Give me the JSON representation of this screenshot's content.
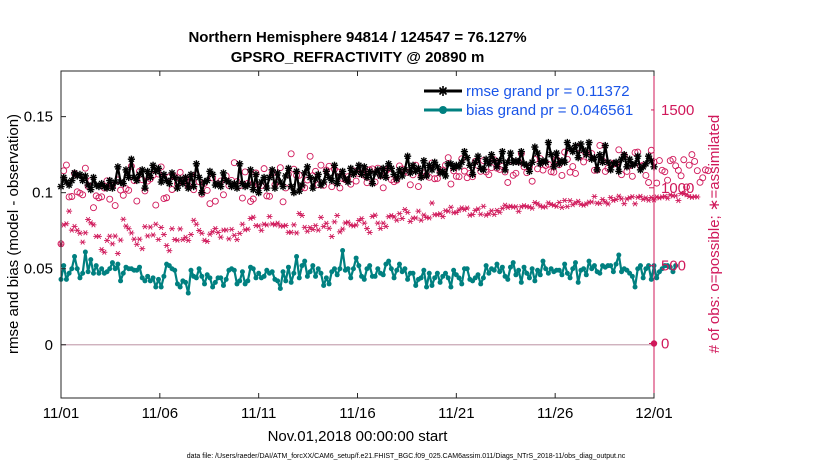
{
  "chart_data": {
    "type": "line",
    "title": "Northern Hemisphere 94814 / 124547 = 76.127%",
    "subtitle": "GPSRO_REFRACTIVITY @ 20890 m",
    "xlabel": "Nov.01,2018 00:00:00 start",
    "ylabel": "rmse and bias (model - observation)",
    "ylabel_right": "# of obs: o=possible; ∗=assimilated",
    "footnote": "data file: /Users/raeder/DAI/ATM_forcXX/CAM6_setup/f.e21.FHIST_BGC.f09_025.CAM6assim.011/Diags_NTrS_2018-11/obs_diag_output.nc",
    "x_tick_labels": [
      "11/01",
      "11/06",
      "11/11",
      "11/16",
      "11/21",
      "11/26",
      "12/01"
    ],
    "x_tick_days": [
      1,
      6,
      11,
      16,
      21,
      26,
      31
    ],
    "xlim": [
      1,
      31
    ],
    "ylim": [
      -0.035,
      0.18
    ],
    "y_ticks": [
      0,
      0.05,
      0.1,
      0.15
    ],
    "y_tick_labels": [
      "0",
      "0.05",
      "0.1",
      "0.15"
    ],
    "y2lim": [
      -350,
      1750
    ],
    "y2_ticks": [
      0,
      500,
      1000,
      1500
    ],
    "y2_tick_labels": [
      "0",
      "500",
      "1000",
      "1500"
    ],
    "legend": [
      {
        "label": "rmse grand pr = 0.11372",
        "color": "#000000"
      },
      {
        "label": "bias grand pr = 0.046561",
        "color": "#008080"
      }
    ],
    "colors": {
      "rmse": "#000000",
      "bias": "#008080",
      "obs": "#d0185a",
      "zero_line": "#c9a7b5"
    },
    "series": [
      {
        "name": "rmse",
        "values": [
          0.104,
          0.11,
          0.107,
          0.105,
          0.108,
          0.113,
          0.111,
          0.112,
          0.108,
          0.111,
          0.105,
          0.102,
          0.11,
          0.105,
          0.104,
          0.106,
          0.104,
          0.103,
          0.108,
          0.103,
          0.107,
          0.117,
          0.107,
          0.106,
          0.115,
          0.11,
          0.122,
          0.11,
          0.108,
          0.112,
          0.115,
          0.103,
          0.114,
          0.11,
          0.118,
          0.114,
          0.116,
          0.107,
          0.112,
          0.108,
          0.106,
          0.113,
          0.11,
          0.103,
          0.109,
          0.106,
          0.11,
          0.103,
          0.112,
          0.104,
          0.119,
          0.11,
          0.1,
          0.107,
          0.108,
          0.114,
          0.112,
          0.105,
          0.106,
          0.104,
          0.113,
          0.108,
          0.107,
          0.104,
          0.106,
          0.103,
          0.119,
          0.106,
          0.104,
          0.105,
          0.115,
          0.102,
          0.112,
          0.1,
          0.107,
          0.11,
          0.103,
          0.11,
          0.115,
          0.103,
          0.113,
          0.107,
          0.104,
          0.111,
          0.116,
          0.104,
          0.1,
          0.114,
          0.101,
          0.105,
          0.113,
          0.117,
          0.11,
          0.103,
          0.109,
          0.112,
          0.105,
          0.107,
          0.114,
          0.11,
          0.108,
          0.118,
          0.106,
          0.111,
          0.114,
          0.109,
          0.107,
          0.116,
          0.112,
          0.114,
          0.118,
          0.112,
          0.117,
          0.11,
          0.114,
          0.106,
          0.113,
          0.115,
          0.111,
          0.116,
          0.11,
          0.119,
          0.116,
          0.112,
          0.109,
          0.115,
          0.111,
          0.115,
          0.124,
          0.113,
          0.118,
          0.114,
          0.116,
          0.11,
          0.121,
          0.111,
          0.118,
          0.115,
          0.12,
          0.117,
          0.113,
          0.114,
          0.111,
          0.119,
          0.119,
          0.116,
          0.118,
          0.117,
          0.12,
          0.127,
          0.123,
          0.118,
          0.112,
          0.12,
          0.124,
          0.116,
          0.115,
          0.122,
          0.119,
          0.125,
          0.121,
          0.117,
          0.121,
          0.127,
          0.115,
          0.12,
          0.126,
          0.12,
          0.121,
          0.12,
          0.127,
          0.119,
          0.118,
          0.114,
          0.12,
          0.13,
          0.126,
          0.119,
          0.121,
          0.12,
          0.133,
          0.125,
          0.117,
          0.126,
          0.119,
          0.121,
          0.12,
          0.133,
          0.129,
          0.127,
          0.131,
          0.123,
          0.132,
          0.128,
          0.125,
          0.133,
          0.122,
          0.123,
          0.115,
          0.125,
          0.12,
          0.131,
          0.12,
          0.115,
          0.119,
          0.12,
          0.114,
          0.122,
          0.125,
          0.117,
          0.122,
          0.118,
          0.119,
          0.124,
          0.115,
          0.117,
          0.119,
          0.124,
          0.121,
          0.117
        ]
      },
      {
        "name": "bias",
        "values": [
          0.043,
          0.052,
          0.043,
          0.047,
          0.05,
          0.058,
          0.05,
          0.044,
          0.047,
          0.061,
          0.048,
          0.056,
          0.047,
          0.052,
          0.047,
          0.05,
          0.047,
          0.048,
          0.05,
          0.054,
          0.05,
          0.053,
          0.042,
          0.047,
          0.051,
          0.05,
          0.05,
          0.049,
          0.049,
          0.051,
          0.044,
          0.042,
          0.045,
          0.042,
          0.044,
          0.038,
          0.043,
          0.038,
          0.045,
          0.053,
          0.052,
          0.05,
          0.049,
          0.04,
          0.038,
          0.042,
          0.041,
          0.034,
          0.049,
          0.045,
          0.044,
          0.05,
          0.045,
          0.04,
          0.046,
          0.044,
          0.038,
          0.041,
          0.044,
          0.044,
          0.039,
          0.043,
          0.049,
          0.05,
          0.049,
          0.04,
          0.042,
          0.048,
          0.04,
          0.042,
          0.051,
          0.05,
          0.044,
          0.047,
          0.044,
          0.045,
          0.049,
          0.047,
          0.048,
          0.043,
          0.042,
          0.037,
          0.048,
          0.042,
          0.051,
          0.041,
          0.047,
          0.058,
          0.044,
          0.052,
          0.055,
          0.045,
          0.048,
          0.052,
          0.045,
          0.05,
          0.047,
          0.039,
          0.044,
          0.04,
          0.048,
          0.05,
          0.046,
          0.05,
          0.062,
          0.049,
          0.05,
          0.044,
          0.05,
          0.057,
          0.052,
          0.045,
          0.043,
          0.05,
          0.052,
          0.045,
          0.045,
          0.05,
          0.047,
          0.046,
          0.053,
          0.055,
          0.05,
          0.044,
          0.049,
          0.053,
          0.048,
          0.05,
          0.043,
          0.047,
          0.047,
          0.039,
          0.043,
          0.044,
          0.049,
          0.038,
          0.047,
          0.039,
          0.044,
          0.047,
          0.041,
          0.045,
          0.047,
          0.044,
          0.038,
          0.049,
          0.046,
          0.044,
          0.04,
          0.05,
          0.05,
          0.043,
          0.042,
          0.044,
          0.046,
          0.04,
          0.044,
          0.052,
          0.047,
          0.05,
          0.049,
          0.053,
          0.048,
          0.051,
          0.045,
          0.043,
          0.051,
          0.054,
          0.046,
          0.049,
          0.041,
          0.051,
          0.047,
          0.044,
          0.05,
          0.042,
          0.049,
          0.046,
          0.055,
          0.05,
          0.047,
          0.05,
          0.048,
          0.049,
          0.049,
          0.046,
          0.053,
          0.047,
          0.044,
          0.05,
          0.054,
          0.041,
          0.049,
          0.05,
          0.046,
          0.055,
          0.05,
          0.052,
          0.048,
          0.047,
          0.052,
          0.051,
          0.052,
          0.052,
          0.048,
          0.053,
          0.059,
          0.048,
          0.05,
          0.049,
          0.047,
          0.045,
          0.038,
          0.05,
          0.052,
          0.044,
          0.05,
          0.052,
          0.043,
          0.052,
          0.044,
          0.048,
          0.05,
          0.052,
          0.052,
          0.051,
          0.048,
          0.052
        ]
      },
      {
        "name": "possible",
        "values": [
          640,
          1109,
          1146,
          941,
          944,
          1091,
          974,
          965,
          955,
          1126,
          1009,
          1046,
          872,
          948,
          936,
          942,
          998,
          1045,
          927,
          1013,
          886,
          1050,
          985,
          952,
          994,
          984,
          1139,
          1046,
          915,
          1106,
          1052,
          980,
          1043,
          1057,
          1080,
          889,
          1088,
          1134,
          931,
          936,
          1069,
          989,
          1071,
          1027,
          1099,
          1041,
          1058,
          1014,
          1027,
          988,
          1084,
          1039,
          960,
          1028,
          983,
          898,
          1063,
          914,
          1026,
          1043,
          955,
          1076,
          1014,
          1047,
          1161,
          1040,
          1013,
          934,
          1102,
          1029,
          912,
          928,
          1095,
          1019,
          1014,
          1123,
          948,
          945,
          1093,
          1019,
          1039,
          1129,
          910,
          999,
          1086,
          1218,
          1119,
          1079,
          1080,
          1007,
          1000,
          1050,
          1202,
          1078,
          1106,
          1019,
          1145,
          1016,
          1114,
          1138,
          1007,
          1118,
          1103,
          999,
          1059,
          1052,
          1071,
          1023,
          1109,
          1043,
          1091,
          1094,
          1080,
          1033,
          1115,
          1121,
          1037,
          1126,
          1078,
          1000,
          1108,
          1122,
          1052,
          1039,
          1049,
          1140,
          1121,
          1107,
          1099,
          1019,
          1083,
          1145,
          1008,
          1075,
          1095,
          1082,
          1067,
          1159,
          1058,
          1060,
          1104,
          1114,
          1146,
          1193,
          1024,
          1109,
          1074,
          1071,
          1186,
          1107,
          1065,
          1092,
          1071,
          1170,
          1143,
          1106,
          1175,
          1102,
          1084,
          1129,
          1180,
          1126,
          1118,
          1138,
          1102,
          1034,
          1179,
          1080,
          1093,
          1169,
          1219,
          1135,
          1097,
          1134,
          1042,
          1182,
          1122,
          1187,
          1114,
          1143,
          1151,
          1103,
          1100,
          1183,
          1148,
          1079,
          1229,
          1183,
          1100,
          1136,
          1092,
          1257,
          1206,
          1166,
          1226,
          1192,
          1220,
          1112,
          1114,
          1272,
          1174,
          1105,
          1125,
          1159,
          1152,
          1155,
          1244,
          1084,
          1208,
          1105,
          1141,
          1074,
          1226,
          1229,
          1139,
          1145,
          1079,
          1034,
          1241,
          1166,
          1030,
          1175,
          1112,
          1103,
          1049,
          1174,
          1183,
          1141,
          1112,
          1077,
          1180,
          1005,
          1145,
          1213,
          1169,
          1110,
          1035,
          1064,
          1115,
          1110
        ]
      },
      {
        "name": "assimilated",
        "values": [
          638,
          761,
          769,
          850,
          728,
          752,
          727,
          708,
          651,
          711,
          796,
          775,
          762,
          688,
          688,
          603,
          586,
          662,
          689,
          640,
          690,
          578,
          664,
          798,
          754,
          737,
          710,
          670,
          637,
          670,
          609,
          750,
          691,
          748,
          697,
          766,
          668,
          745,
          700,
          629,
          596,
          737,
          668,
          663,
          736,
          667,
          682,
          662,
          700,
          791,
          766,
          726,
          708,
          663,
          655,
          702,
          718,
          738,
          713,
          683,
          728,
          729,
          672,
          733,
          695,
          667,
          707,
          766,
          730,
          734,
          803,
          811,
          757,
          755,
          727,
          766,
          761,
          815,
          768,
          762,
          773,
          755,
          754,
          758,
          714,
          714,
          762,
          710,
          835,
          822,
          746,
          721,
          744,
          732,
          757,
          728,
          810,
          752,
          772,
          740,
          687,
          781,
          822,
          717,
          735,
          774,
          779,
          761,
          755,
          761,
          790,
          802,
          773,
          738,
          713,
          816,
          824,
          773,
          739,
          773,
          752,
          814,
          822,
          813,
          792,
          834,
          803,
          860,
          842,
          784,
          805,
          806,
          850,
          792,
          825,
          809,
          806,
          902,
          827,
          827,
          833,
          815,
          853,
          850,
          875,
          840,
          841,
          857,
          871,
          860,
          870,
          824,
          828,
          855,
          864,
          830,
          881,
          824,
          833,
          852,
          829,
          855,
          843,
          868,
          888,
          874,
          882,
          876,
          878,
          849,
          878,
          885,
          879,
          877,
          869,
          905,
          897,
          883,
          876,
          878,
          903,
          893,
          888,
          881,
          906,
          874,
          919,
          879,
          917,
          891,
          903,
          913,
          894,
          888,
          896,
          908,
          909,
          944,
          901,
          900,
          925,
          909,
          896,
          937,
          919,
          925,
          946,
          929,
          898,
          928,
          936,
          943,
          897,
          939,
          945,
          926,
          935,
          920,
          938,
          922,
          941,
          935,
          941,
          945,
          933,
          955,
          948,
          948,
          918,
          964,
          963,
          955,
          944,
          939,
          943,
          941
        ]
      }
    ]
  }
}
